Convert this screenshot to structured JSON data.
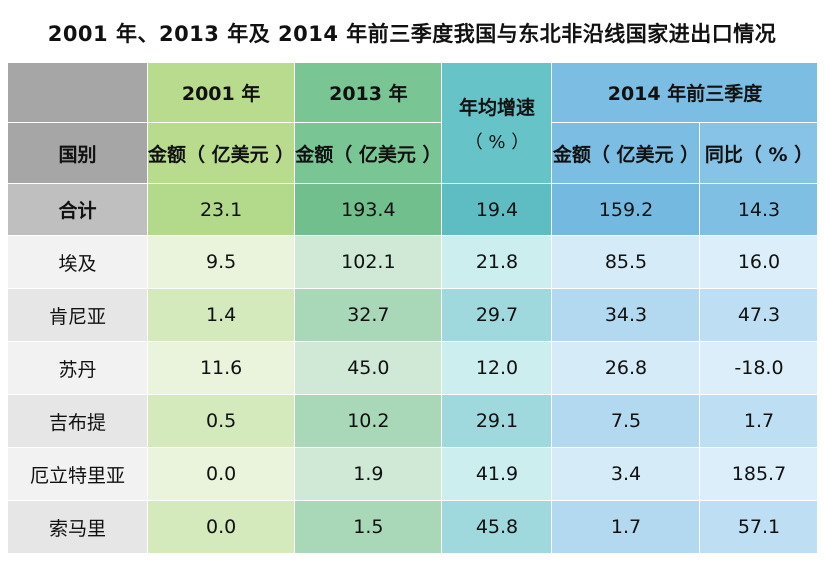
{
  "title": "2001 年、2013 年及 2014 年前三季度我国与东北非沿线国家进出口情况",
  "header": {
    "country": "国别",
    "year2001": "2001 年",
    "year2013": "2013 年",
    "growth_line1": "年均增速",
    "growth_line2": "（ % ）",
    "year2014": "2014 年前三季度",
    "amount": "金额（ 亿美元 ）",
    "yoy": "同比（ % ）"
  },
  "total": {
    "label": "合计",
    "v2001": "23.1",
    "v2013": "193.4",
    "growth": "19.4",
    "v2014": "159.2",
    "yoy": "14.3"
  },
  "rows": [
    {
      "country": "埃及",
      "v2001": "9.5",
      "v2013": "102.1",
      "growth": "21.8",
      "v2014": "85.5",
      "yoy": "16.0"
    },
    {
      "country": "肯尼亚",
      "v2001": "1.4",
      "v2013": "32.7",
      "growth": "29.7",
      "v2014": "34.3",
      "yoy": "47.3"
    },
    {
      "country": "苏丹",
      "v2001": "11.6",
      "v2013": "45.0",
      "growth": "12.0",
      "v2014": "26.8",
      "yoy": "-18.0"
    },
    {
      "country": "吉布提",
      "v2001": "0.5",
      "v2013": "10.2",
      "growth": "29.1",
      "v2014": "7.5",
      "yoy": "1.7"
    },
    {
      "country": "厄立特里亚",
      "v2001": "0.0",
      "v2013": "1.9",
      "growth": "41.9",
      "v2014": "3.4",
      "yoy": "185.7"
    },
    {
      "country": "索马里",
      "v2001": "0.0",
      "v2013": "1.5",
      "growth": "45.8",
      "v2014": "1.7",
      "yoy": "57.1"
    }
  ]
}
